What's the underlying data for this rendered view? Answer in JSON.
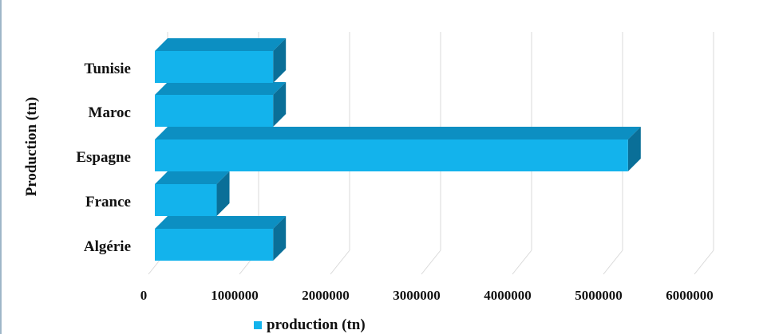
{
  "chart_data": {
    "type": "bar",
    "orientation": "horizontal",
    "style": "3d",
    "categories": [
      "Algérie",
      "France",
      "Espagne",
      "Maroc",
      "Tunisie"
    ],
    "series": [
      {
        "name": "production (tn)",
        "color": "#13b3ec",
        "values": [
          1300000,
          680000,
          5200000,
          1300000,
          1300000
        ]
      }
    ],
    "ylabel": "Production (tn)",
    "xlabel": "",
    "xlim": [
      0,
      6000000
    ],
    "xticks": [
      "0",
      "1000000",
      "2000000",
      "3000000",
      "4000000",
      "5000000",
      "6000000"
    ],
    "legend_position": "bottom",
    "grid": true
  }
}
